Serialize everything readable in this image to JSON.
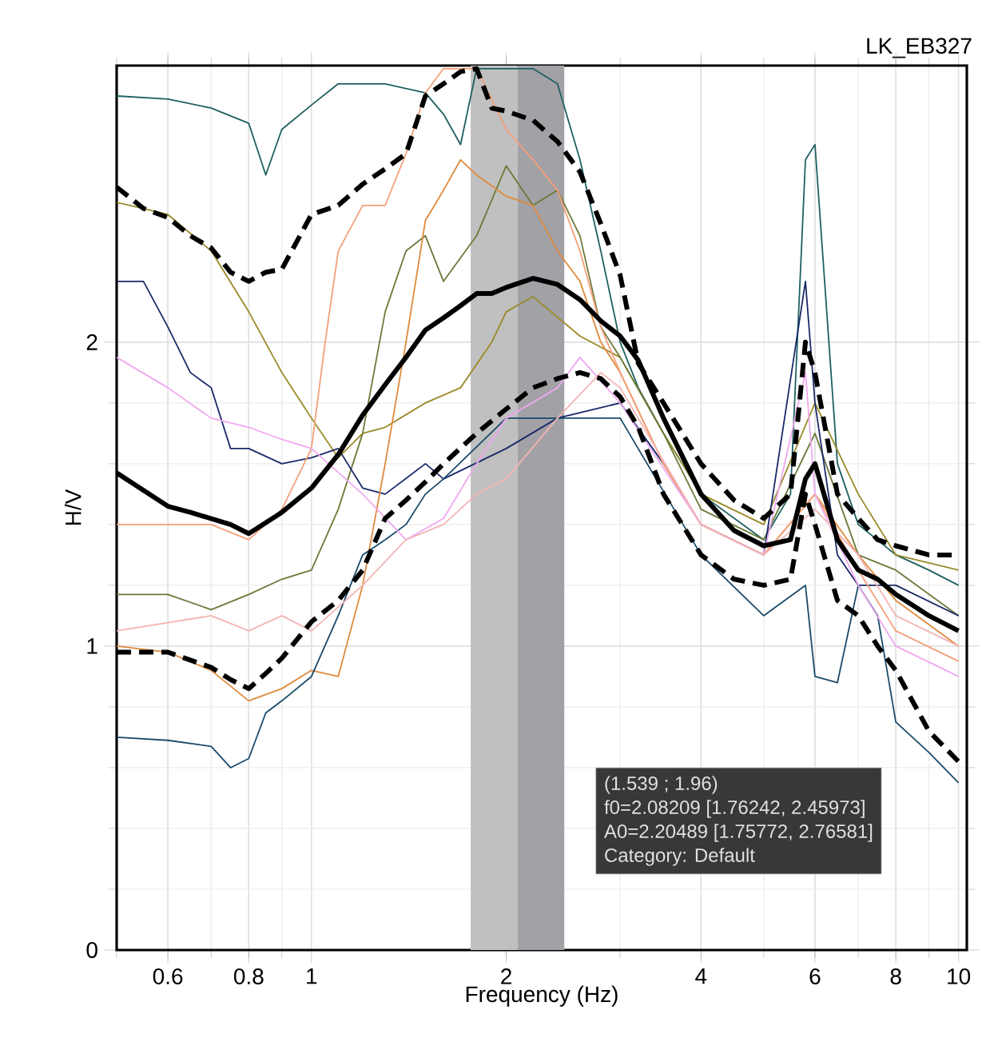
{
  "chart_data": {
    "type": "line",
    "title": "LK_EB327",
    "xlabel": "Frequency (Hz)",
    "ylabel": "H/V",
    "log": "x",
    "grid": true,
    "xlim": [
      0.5,
      10.3
    ],
    "ylim": [
      0,
      2.91
    ],
    "xticks": [
      0.6,
      0.8,
      1,
      2,
      4,
      6,
      8,
      10
    ],
    "yticks": [
      0,
      1,
      2
    ],
    "bands": [
      {
        "axis": "x",
        "from": 1.76242,
        "to": 2.08209,
        "color": "#c0c0c0"
      },
      {
        "axis": "x",
        "from": 2.08209,
        "to": 2.45973,
        "color": "#a2a1a6"
      }
    ],
    "annotations": [
      "(1.539 ; 1.96)",
      "f0=2.08209 [1.76242, 2.45973]",
      "A0=2.20489 [1.75772, 2.76581]",
      "Category: Default"
    ],
    "series": [
      {
        "color": "#1f6060",
        "x": [
          0.5,
          0.6,
          0.7,
          0.8,
          0.85,
          0.9,
          1,
          1.1,
          1.3,
          1.5,
          1.6,
          1.7,
          1.8,
          2,
          2.2,
          2.4,
          2.6,
          2.8,
          3,
          3.2,
          3.5,
          4,
          5,
          5.5,
          5.8,
          6,
          6.5,
          7,
          8,
          9,
          10
        ],
        "values": [
          2.81,
          2.8,
          2.77,
          2.72,
          2.55,
          2.7,
          2.78,
          2.85,
          2.85,
          2.82,
          2.75,
          2.65,
          2.9,
          2.9,
          2.9,
          2.85,
          2.6,
          2.3,
          2.0,
          1.85,
          1.7,
          1.5,
          1.35,
          1.5,
          2.6,
          2.65,
          1.6,
          1.4,
          1.3,
          1.25,
          1.2
        ]
      },
      {
        "color": "#9a8a2a",
        "x": [
          0.5,
          0.6,
          0.7,
          0.8,
          0.9,
          1,
          1.1,
          1.2,
          1.3,
          1.5,
          1.7,
          1.9,
          2,
          2.2,
          2.6,
          3,
          3.5,
          4,
          5,
          6,
          7,
          8,
          10
        ],
        "values": [
          2.46,
          2.42,
          2.3,
          2.1,
          1.9,
          1.75,
          1.62,
          1.7,
          1.72,
          1.8,
          1.85,
          2.0,
          2.1,
          2.15,
          2.02,
          1.95,
          1.7,
          1.5,
          1.4,
          1.8,
          1.5,
          1.3,
          1.25
        ]
      },
      {
        "color": "#6a7a3a",
        "x": [
          0.5,
          0.6,
          0.7,
          0.8,
          0.9,
          1,
          1.1,
          1.2,
          1.3,
          1.4,
          1.5,
          1.6,
          1.8,
          2,
          2.2,
          2.4,
          2.6,
          2.8,
          3,
          3.5,
          4,
          5,
          6,
          7,
          8,
          10
        ],
        "values": [
          1.17,
          1.17,
          1.12,
          1.17,
          1.22,
          1.25,
          1.45,
          1.7,
          2.1,
          2.3,
          2.35,
          2.2,
          2.35,
          2.58,
          2.45,
          2.5,
          2.35,
          2.05,
          1.95,
          1.7,
          1.45,
          1.35,
          1.7,
          1.3,
          1.25,
          1.1
        ]
      },
      {
        "color": "#1a2a6a",
        "x": [
          0.5,
          0.55,
          0.6,
          0.65,
          0.7,
          0.75,
          0.8,
          0.9,
          1,
          1.1,
          1.2,
          1.3,
          1.5,
          1.6,
          2,
          2.4,
          3,
          3.5,
          4,
          5,
          5.8,
          6,
          6.5,
          7,
          8,
          10
        ],
        "values": [
          2.2,
          2.2,
          2.05,
          1.9,
          1.85,
          1.65,
          1.65,
          1.6,
          1.62,
          1.65,
          1.52,
          1.5,
          1.6,
          1.55,
          1.65,
          1.75,
          1.8,
          1.6,
          1.4,
          1.3,
          2.2,
          1.8,
          1.3,
          1.2,
          1.2,
          1.1
        ]
      },
      {
        "color": "#e08a3c",
        "x": [
          0.5,
          0.6,
          0.7,
          0.8,
          0.9,
          1,
          1.1,
          1.2,
          1.3,
          1.4,
          1.5,
          1.6,
          1.7,
          1.8,
          2,
          2.2,
          2.4,
          2.6,
          2.8,
          3,
          3.5,
          4,
          5,
          6,
          7,
          8,
          10
        ],
        "values": [
          1.0,
          0.98,
          0.92,
          0.82,
          0.86,
          0.92,
          0.9,
          1.2,
          1.6,
          2.0,
          2.4,
          2.5,
          2.6,
          2.55,
          2.48,
          2.45,
          2.3,
          2.2,
          2.0,
          1.9,
          1.6,
          1.4,
          1.3,
          1.5,
          1.3,
          1.15,
          1.0
        ]
      },
      {
        "color": "#f4a07a",
        "x": [
          0.5,
          0.6,
          0.7,
          0.8,
          0.9,
          1,
          1.05,
          1.1,
          1.2,
          1.3,
          1.4,
          1.5,
          1.6,
          1.8,
          2,
          2.2,
          2.4,
          2.6,
          2.8,
          3,
          3.5,
          4,
          5,
          6,
          7,
          8,
          10
        ],
        "values": [
          1.4,
          1.4,
          1.4,
          1.35,
          1.45,
          1.65,
          2.0,
          2.3,
          2.45,
          2.45,
          2.62,
          2.82,
          2.9,
          2.9,
          2.7,
          2.6,
          2.5,
          2.3,
          2.05,
          1.9,
          1.6,
          1.4,
          1.3,
          1.5,
          1.25,
          1.05,
          0.95
        ]
      },
      {
        "color": "#1a4a6a",
        "x": [
          0.5,
          0.6,
          0.7,
          0.75,
          0.8,
          0.85,
          0.9,
          1,
          1.1,
          1.2,
          1.3,
          1.4,
          1.5,
          1.6,
          2,
          3,
          4,
          5,
          5.8,
          6,
          6.5,
          7,
          7.5,
          8,
          9,
          10
        ],
        "values": [
          0.7,
          0.69,
          0.67,
          0.6,
          0.63,
          0.78,
          0.82,
          0.9,
          1.1,
          1.3,
          1.35,
          1.4,
          1.5,
          1.55,
          1.75,
          1.75,
          1.3,
          1.1,
          1.2,
          0.9,
          0.88,
          1.2,
          1.1,
          0.75,
          0.65,
          0.55
        ]
      },
      {
        "color": "#f0a8f0",
        "x": [
          0.5,
          0.6,
          0.7,
          0.8,
          0.9,
          1,
          1.2,
          1.4,
          1.6,
          1.8,
          2,
          2.4,
          2.6,
          3,
          4,
          5,
          5.8,
          6,
          7,
          8,
          10
        ],
        "values": [
          1.95,
          1.85,
          1.75,
          1.72,
          1.68,
          1.65,
          1.5,
          1.35,
          1.42,
          1.6,
          1.75,
          1.85,
          1.95,
          1.8,
          1.4,
          1.3,
          1.9,
          1.5,
          1.2,
          1.0,
          0.9
        ]
      },
      {
        "color": "#f4b4b4",
        "x": [
          0.5,
          0.7,
          0.8,
          0.9,
          1,
          1.2,
          1.4,
          1.6,
          1.8,
          2,
          2.4,
          2.8,
          3,
          4,
          5,
          6,
          7,
          8,
          10
        ],
        "values": [
          1.05,
          1.1,
          1.05,
          1.1,
          1.05,
          1.2,
          1.35,
          1.4,
          1.5,
          1.55,
          1.75,
          1.9,
          1.85,
          1.4,
          1.3,
          1.45,
          1.3,
          1.1,
          1.0
        ]
      },
      {
        "color": "#000000",
        "line_style": "dashed",
        "x": [
          0.5,
          0.55,
          0.6,
          0.65,
          0.7,
          0.75,
          0.8,
          0.85,
          0.9,
          1,
          1.1,
          1.2,
          1.3,
          1.4,
          1.5,
          1.6,
          1.7,
          1.8,
          1.9,
          2,
          2.2,
          2.4,
          2.6,
          2.8,
          3,
          3.2,
          3.5,
          4,
          4.5,
          5,
          5.5,
          5.8,
          6,
          6.5,
          7,
          7.5,
          8,
          9,
          10
        ],
        "values": [
          2.51,
          2.44,
          2.41,
          2.35,
          2.31,
          2.23,
          2.2,
          2.23,
          2.24,
          2.42,
          2.45,
          2.52,
          2.57,
          2.62,
          2.81,
          2.85,
          2.89,
          2.9,
          2.77,
          2.76,
          2.73,
          2.66,
          2.56,
          2.39,
          2.22,
          1.93,
          1.8,
          1.6,
          1.48,
          1.42,
          1.5,
          2.0,
          1.9,
          1.5,
          1.42,
          1.35,
          1.33,
          1.3,
          1.3
        ]
      },
      {
        "color": "#000000",
        "line_style": "solid",
        "x": [
          0.5,
          0.6,
          0.65,
          0.75,
          0.8,
          0.9,
          1,
          1.1,
          1.2,
          1.3,
          1.4,
          1.5,
          1.6,
          1.7,
          1.8,
          1.9,
          2,
          2.2,
          2.4,
          2.6,
          2.8,
          3,
          3.2,
          3.5,
          4,
          4.5,
          5,
          5.5,
          5.8,
          6,
          6.5,
          7,
          7.5,
          8,
          9,
          10
        ],
        "values": [
          1.57,
          1.46,
          1.44,
          1.4,
          1.37,
          1.44,
          1.52,
          1.63,
          1.76,
          1.86,
          1.95,
          2.04,
          2.08,
          2.12,
          2.16,
          2.16,
          2.18,
          2.21,
          2.19,
          2.14,
          2.07,
          2.02,
          1.94,
          1.75,
          1.5,
          1.38,
          1.33,
          1.35,
          1.55,
          1.6,
          1.35,
          1.25,
          1.22,
          1.17,
          1.1,
          1.05
        ]
      },
      {
        "color": "#000000",
        "line_style": "dashed",
        "x": [
          0.5,
          0.6,
          0.7,
          0.75,
          0.8,
          0.85,
          0.9,
          1,
          1.1,
          1.2,
          1.3,
          1.4,
          1.5,
          1.6,
          1.8,
          2,
          2.2,
          2.4,
          2.6,
          2.8,
          3,
          3.2,
          3.5,
          4,
          4.5,
          5,
          5.5,
          5.8,
          6,
          6.5,
          7,
          7.5,
          8,
          9,
          10
        ],
        "values": [
          0.98,
          0.98,
          0.93,
          0.89,
          0.86,
          0.91,
          0.96,
          1.08,
          1.15,
          1.25,
          1.42,
          1.48,
          1.54,
          1.6,
          1.7,
          1.78,
          1.85,
          1.88,
          1.9,
          1.88,
          1.82,
          1.72,
          1.5,
          1.3,
          1.22,
          1.2,
          1.22,
          1.5,
          1.4,
          1.15,
          1.1,
          1.0,
          0.92,
          0.72,
          0.62
        ]
      }
    ]
  }
}
